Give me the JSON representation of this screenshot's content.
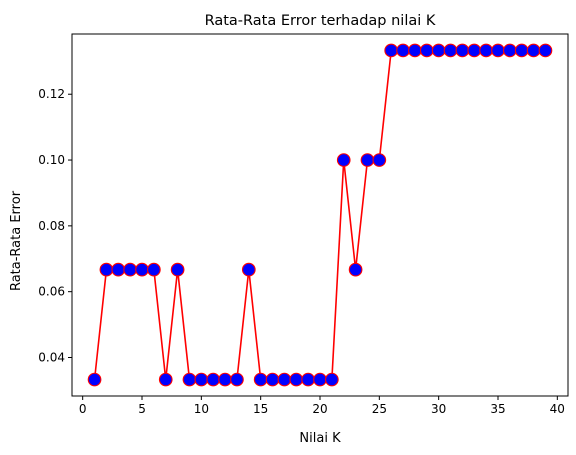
{
  "chart_data": {
    "type": "line",
    "title": "Rata-Rata Error terhadap nilai K",
    "xlabel": "Nilai K",
    "ylabel": "Rata-Rata Error",
    "xlim": [
      -0.9,
      40.9
    ],
    "ylim": [
      0.0283,
      0.1383
    ],
    "x_ticks": [
      0,
      5,
      10,
      15,
      20,
      25,
      30,
      35,
      40
    ],
    "y_ticks": [
      0.04,
      0.06,
      0.08,
      0.1,
      0.12
    ],
    "x_tick_labels": [
      "0",
      "5",
      "10",
      "15",
      "20",
      "25",
      "30",
      "35",
      "40"
    ],
    "y_tick_labels": [
      "0.04",
      "0.06",
      "0.08",
      "0.10",
      "0.12"
    ],
    "grid": false,
    "series": [
      {
        "line_color": "#ff0000",
        "marker_face_color": "#0000ff",
        "marker_edge_color": "#ff0000",
        "x": [
          1,
          2,
          3,
          4,
          5,
          6,
          7,
          8,
          9,
          10,
          11,
          12,
          13,
          14,
          15,
          16,
          17,
          18,
          19,
          20,
          21,
          22,
          23,
          24,
          25,
          26,
          27,
          28,
          29,
          30,
          31,
          32,
          33,
          34,
          35,
          36,
          37,
          38,
          39
        ],
        "y": [
          0.0333,
          0.0667,
          0.0667,
          0.0667,
          0.0667,
          0.0667,
          0.0333,
          0.0667,
          0.0333,
          0.0333,
          0.0333,
          0.0333,
          0.0333,
          0.0667,
          0.0333,
          0.0333,
          0.0333,
          0.0333,
          0.0333,
          0.0333,
          0.0333,
          0.1,
          0.0667,
          0.1,
          0.1,
          0.1333,
          0.1333,
          0.1333,
          0.1333,
          0.1333,
          0.1333,
          0.1333,
          0.1333,
          0.1333,
          0.1333,
          0.1333,
          0.1333,
          0.1333,
          0.1333
        ]
      }
    ]
  }
}
